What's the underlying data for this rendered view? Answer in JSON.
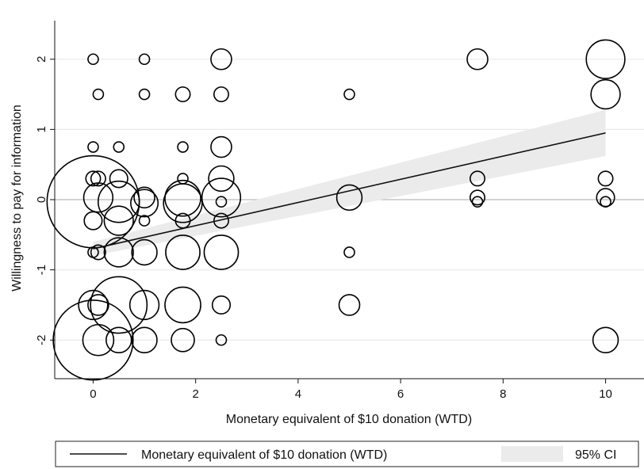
{
  "chart_data": {
    "type": "scatter",
    "title": "",
    "xlabel": "Monetary equivalent of $10 donation (WTD)",
    "ylabel": "Willingness to pay for information",
    "xlim": [
      -0.75,
      10.75
    ],
    "ylim": [
      -2.55,
      2.55
    ],
    "x_ticks": [
      0,
      2,
      4,
      6,
      8,
      10
    ],
    "y_ticks": [
      -2,
      -1,
      0,
      1,
      2
    ],
    "grid": true,
    "legend_position": "bottom",
    "points": [
      {
        "x": 0,
        "y": 2,
        "weight": 1
      },
      {
        "x": 1,
        "y": 2,
        "weight": 1
      },
      {
        "x": 2.5,
        "y": 2,
        "weight": 4
      },
      {
        "x": 7.5,
        "y": 2,
        "weight": 4
      },
      {
        "x": 10,
        "y": 2,
        "weight": 14
      },
      {
        "x": 0.1,
        "y": 1.5,
        "weight": 1
      },
      {
        "x": 1,
        "y": 1.5,
        "weight": 1
      },
      {
        "x": 1.75,
        "y": 1.5,
        "weight": 2
      },
      {
        "x": 2.5,
        "y": 1.5,
        "weight": 2
      },
      {
        "x": 5,
        "y": 1.5,
        "weight": 1
      },
      {
        "x": 10,
        "y": 1.5,
        "weight": 8
      },
      {
        "x": 0,
        "y": 0.75,
        "weight": 1
      },
      {
        "x": 0.5,
        "y": 0.75,
        "weight": 1
      },
      {
        "x": 1.75,
        "y": 0.75,
        "weight": 1
      },
      {
        "x": 2.5,
        "y": 0.75,
        "weight": 4
      },
      {
        "x": 0,
        "y": 0.3,
        "weight": 2
      },
      {
        "x": 0.1,
        "y": 0.3,
        "weight": 2
      },
      {
        "x": 0.5,
        "y": 0.3,
        "weight": 3
      },
      {
        "x": 1.75,
        "y": 0.3,
        "weight": 1
      },
      {
        "x": 2.5,
        "y": 0.3,
        "weight": 6
      },
      {
        "x": 7.5,
        "y": 0.3,
        "weight": 2
      },
      {
        "x": 10,
        "y": 0.3,
        "weight": 2
      },
      {
        "x": 0,
        "y": -0.03,
        "weight": 80
      },
      {
        "x": 0.1,
        "y": 0.03,
        "weight": 8
      },
      {
        "x": 0.5,
        "y": -0.03,
        "weight": 16
      },
      {
        "x": 1,
        "y": 0.03,
        "weight": 4
      },
      {
        "x": 1,
        "y": -0.05,
        "weight": 7
      },
      {
        "x": 1.75,
        "y": 0.02,
        "weight": 12
      },
      {
        "x": 1.75,
        "y": -0.05,
        "weight": 14
      },
      {
        "x": 2.5,
        "y": 0.03,
        "weight": 14
      },
      {
        "x": 2.5,
        "y": -0.03,
        "weight": 1
      },
      {
        "x": 5,
        "y": 0.03,
        "weight": 6
      },
      {
        "x": 7.5,
        "y": 0.03,
        "weight": 2
      },
      {
        "x": 7.5,
        "y": -0.03,
        "weight": 1
      },
      {
        "x": 10,
        "y": 0.03,
        "weight": 3
      },
      {
        "x": 10,
        "y": -0.03,
        "weight": 1
      },
      {
        "x": 0,
        "y": -0.3,
        "weight": 3
      },
      {
        "x": 0.5,
        "y": -0.3,
        "weight": 8
      },
      {
        "x": 1,
        "y": -0.3,
        "weight": 1
      },
      {
        "x": 1.75,
        "y": -0.3,
        "weight": 2
      },
      {
        "x": 2.5,
        "y": -0.3,
        "weight": 2
      },
      {
        "x": 0,
        "y": -0.75,
        "weight": 1
      },
      {
        "x": 0.1,
        "y": -0.75,
        "weight": 2
      },
      {
        "x": 0.5,
        "y": -0.75,
        "weight": 8
      },
      {
        "x": 1,
        "y": -0.75,
        "weight": 6
      },
      {
        "x": 1.75,
        "y": -0.75,
        "weight": 11
      },
      {
        "x": 2.5,
        "y": -0.75,
        "weight": 11
      },
      {
        "x": 5,
        "y": -0.75,
        "weight": 1
      },
      {
        "x": 0,
        "y": -1.5,
        "weight": 8
      },
      {
        "x": 0.1,
        "y": -1.5,
        "weight": 4
      },
      {
        "x": 0.5,
        "y": -1.5,
        "weight": 30
      },
      {
        "x": 1,
        "y": -1.5,
        "weight": 8
      },
      {
        "x": 1.75,
        "y": -1.5,
        "weight": 12
      },
      {
        "x": 2.5,
        "y": -1.5,
        "weight": 3
      },
      {
        "x": 5,
        "y": -1.5,
        "weight": 4
      },
      {
        "x": 0,
        "y": -2,
        "weight": 60
      },
      {
        "x": 0.1,
        "y": -2,
        "weight": 9
      },
      {
        "x": 0.5,
        "y": -2,
        "weight": 6
      },
      {
        "x": 1,
        "y": -2,
        "weight": 6
      },
      {
        "x": 1.75,
        "y": -2,
        "weight": 5
      },
      {
        "x": 2.5,
        "y": -2,
        "weight": 1
      },
      {
        "x": 10,
        "y": -2,
        "weight": 6
      }
    ],
    "fit_line": {
      "x": [
        0,
        10
      ],
      "y": [
        -0.7,
        0.95
      ],
      "ci_lower": [
        -0.8,
        0.62
      ],
      "ci_upper": [
        -0.6,
        1.28
      ]
    },
    "legend": [
      {
        "label": "Monetary equivalent of $10 donation (WTD)",
        "kind": "line"
      },
      {
        "label": "95% CI",
        "kind": "band"
      }
    ],
    "colors": {
      "line": "#111111",
      "band": "#ebebeb",
      "grid": "#e4ecf0",
      "marker": "#000000"
    }
  }
}
